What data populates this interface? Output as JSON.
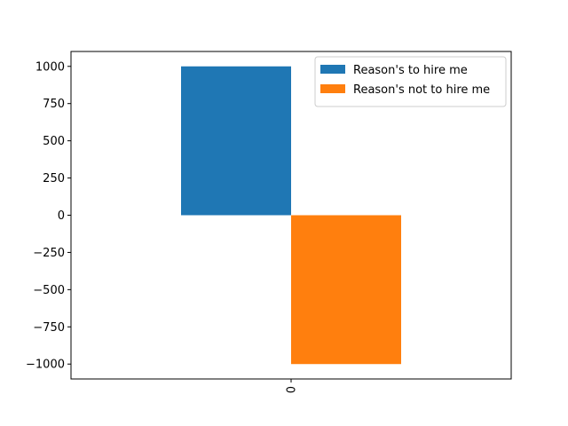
{
  "chart_data": {
    "type": "bar",
    "categories": [
      "0"
    ],
    "series": [
      {
        "name": "Reason's to hire me",
        "values": [
          1000
        ],
        "color": "#1f77b4"
      },
      {
        "name": "Reason's not to hire me",
        "values": [
          -1000
        ],
        "color": "#ff7f0e"
      }
    ],
    "title": "",
    "xlabel": "",
    "ylabel": "",
    "ylim": [
      -1100,
      1100
    ],
    "yticks": [
      1000,
      750,
      500,
      250,
      0,
      -250,
      -500,
      -750,
      -1000
    ],
    "ytick_labels": [
      "1000",
      "750",
      "500",
      "250",
      "0",
      "−250",
      "−500",
      "−750",
      "−1000"
    ],
    "xtick_labels": [
      "0"
    ],
    "xtick_rotation": 90,
    "grid": false,
    "legend_position": "top-right"
  }
}
